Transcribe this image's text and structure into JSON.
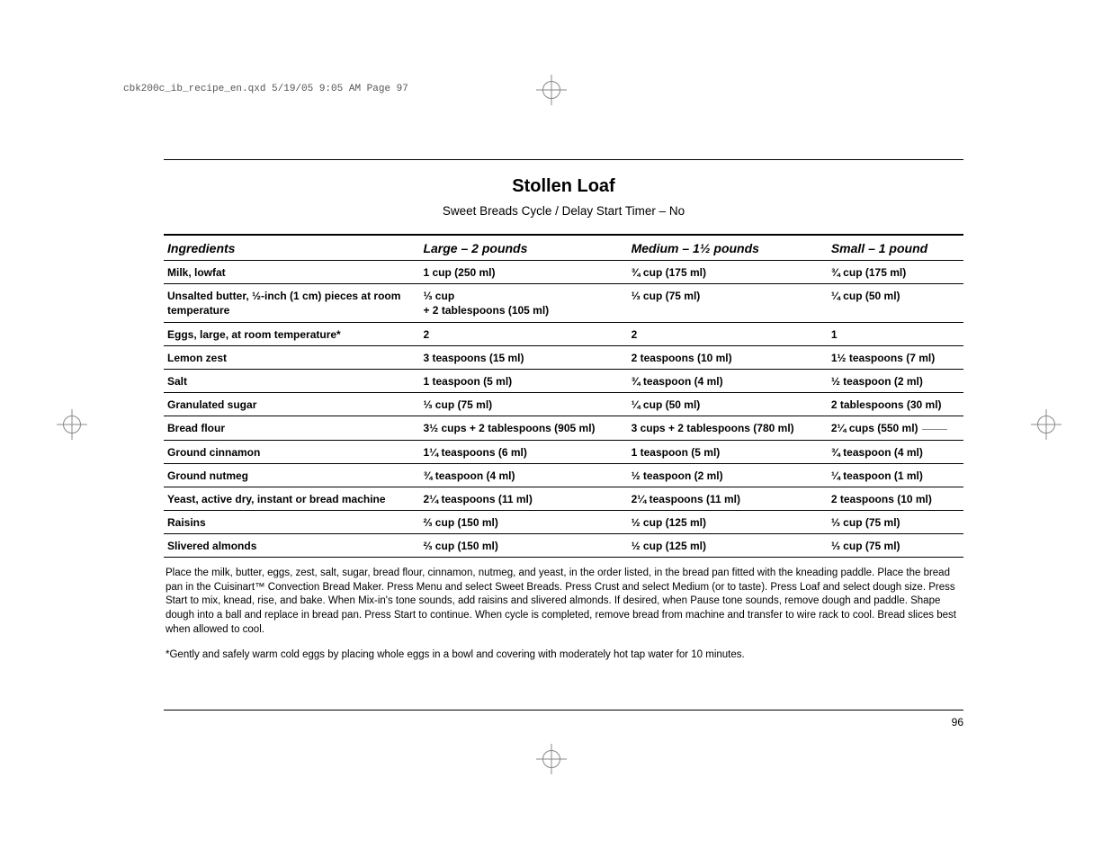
{
  "header_meta": "cbk200c_ib_recipe_en.qxd  5/19/05  9:05 AM  Page 97",
  "title": "Stollen Loaf",
  "subtitle": "Sweet Breads Cycle / Delay Start Timer – No",
  "columns": [
    "Ingredients",
    "Large – 2 pounds",
    "Medium – 1½ pounds",
    "Small – 1 pound"
  ],
  "rows": [
    {
      "name": "Milk, lowfat",
      "large": "1 cup (250 ml)",
      "medium": "¾ cup (175 ml)",
      "small": "¾ cup (175 ml)"
    },
    {
      "name": "Unsalted butter, ½-inch (1 cm) pieces at room temperature",
      "large": "⅓ cup\n+ 2 tablespoons (105 ml)",
      "medium": "⅓ cup (75 ml)",
      "small": "¼ cup (50 ml)"
    },
    {
      "name": "Eggs, large, at room temperature*",
      "large": "2",
      "medium": "2",
      "small": "1"
    },
    {
      "name": "Lemon zest",
      "large": "3 teaspoons (15 ml)",
      "medium": "2 teaspoons (10 ml)",
      "small": "1½ teaspoons (7 ml)"
    },
    {
      "name": "Salt",
      "large": "1 teaspoon (5 ml)",
      "medium": "¾ teaspoon (4 ml)",
      "small": "½ teaspoon (2 ml)"
    },
    {
      "name": "Granulated sugar",
      "large": "⅓ cup (75 ml)",
      "medium": "¼ cup (50 ml)",
      "small": "2 tablespoons (30 ml)"
    },
    {
      "name": "Bread flour",
      "large": "3½ cups + 2 tablespoons (905 ml)",
      "medium": "3 cups + 2 tablespoons (780 ml)",
      "small": "2¼ cups (550 ml)"
    },
    {
      "name": "Ground cinnamon",
      "large": "1¼ teaspoons (6 ml)",
      "medium": "1 teaspoon (5 ml)",
      "small": "¾ teaspoon (4 ml)"
    },
    {
      "name": "Ground nutmeg",
      "large": "¾ teaspoon (4 ml)",
      "medium": "½ teaspoon (2 ml)",
      "small": "¼ teaspoon (1 ml)"
    },
    {
      "name": "Yeast, active dry, instant or bread machine",
      "large": "2¼ teaspoons (11 ml)",
      "medium": "2¼ teaspoons (11 ml)",
      "small": "2 teaspoons (10 ml)"
    },
    {
      "name": "Raisins",
      "large": "⅔ cup (150 ml)",
      "medium": "½ cup (125 ml)",
      "small": "⅓ cup (75 ml)"
    },
    {
      "name": "Slivered almonds",
      "large": "⅔ cup (150 ml)",
      "medium": "½ cup (125 ml)",
      "small": "⅓ cup (75 ml)"
    }
  ],
  "instructions": "Place the milk, butter, eggs, zest, salt, sugar, bread flour, cinnamon, nutmeg, and yeast, in the order listed, in the bread pan fitted with the kneading paddle. Place the bread pan in the Cuisinart™ Convection Bread Maker. Press Menu and select Sweet Breads. Press Crust and select Medium (or to taste). Press Loaf and select dough size. Press Start to mix, knead, rise, and bake. When Mix-in's tone sounds, add raisins and slivered almonds. If desired, when Pause tone sounds, remove dough and paddle. Shape dough into a ball and replace in bread pan. Press Start to continue. When cycle is completed, remove bread from machine and transfer to wire rack to cool. Bread slices best when allowed to cool.",
  "footnote": "*Gently and safely warm cold eggs by placing whole eggs in a bowl and covering with moderately hot tap water for 10 minutes.",
  "page_number": "96"
}
